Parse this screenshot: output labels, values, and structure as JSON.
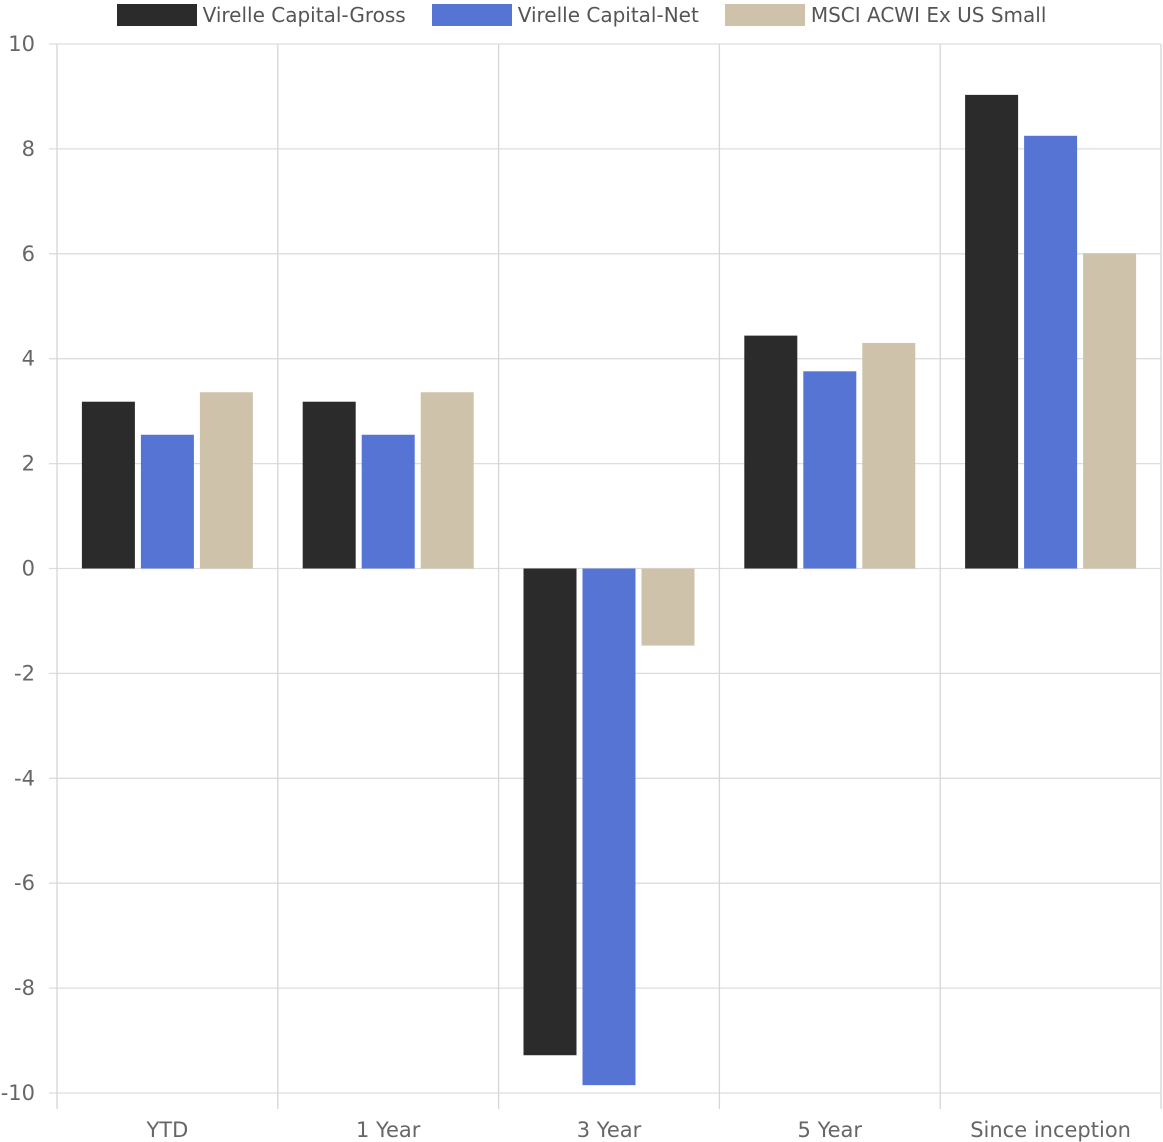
{
  "chart_data": {
    "type": "bar",
    "title": "",
    "xlabel": "",
    "ylabel": "",
    "categories": [
      "YTD",
      "1 Year",
      "3 Year",
      "5 Year",
      "Since inception"
    ],
    "series": [
      {
        "name": "Virelle Capital-Gross",
        "color": "#2b2b2b",
        "values": [
          3.18,
          3.18,
          -9.28,
          4.44,
          9.03
        ]
      },
      {
        "name": "Virelle Capital-Net",
        "color": "#5674d4",
        "values": [
          2.55,
          2.55,
          -9.85,
          3.76,
          8.25
        ]
      },
      {
        "name": "MSCI ACWI Ex US Small",
        "color": "#cec2ab",
        "values": [
          3.36,
          3.36,
          -1.47,
          4.3,
          6.01
        ]
      }
    ],
    "ylim": [
      -10,
      10
    ],
    "yticks": [
      10,
      8,
      6,
      4,
      2,
      0,
      -2,
      -4,
      -6,
      -8,
      -10
    ],
    "ytick_labels": [
      "10",
      "8",
      "6",
      "4",
      "2",
      "0",
      "-2",
      "-4",
      "-6",
      "-8",
      "-10"
    ],
    "grid": true,
    "legend_position": "top-center"
  }
}
